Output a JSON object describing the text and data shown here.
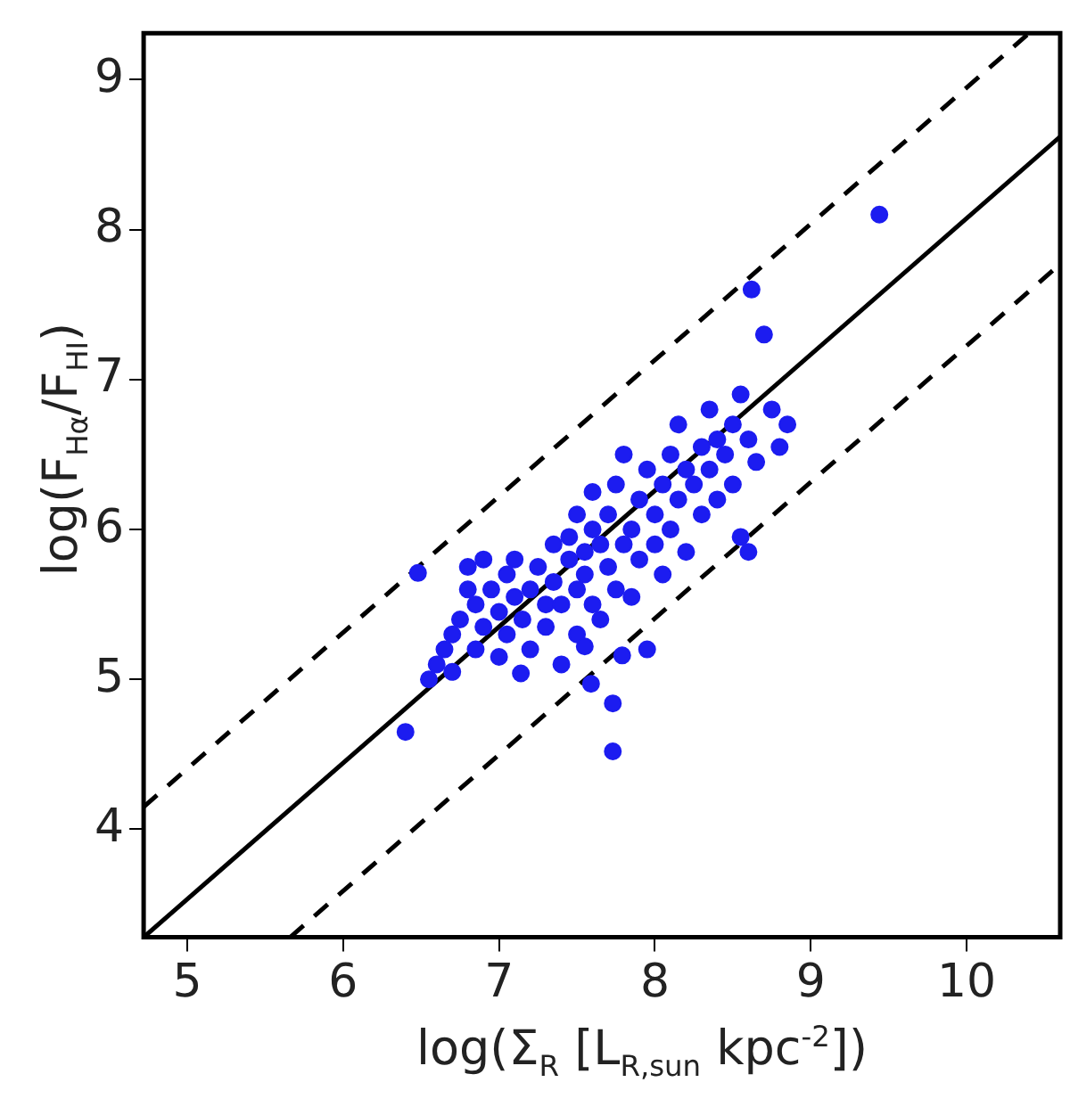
{
  "chart_data": {
    "type": "scatter",
    "xlabel": "log(Σ$_{R}$  [L$_{R,sun}$ kpc$^{-2}$])",
    "ylabel": "log(F$_{Hα}$/F$_{HI}$)",
    "xlim": [
      4.72,
      10.6
    ],
    "xticks": [
      5,
      6,
      7,
      8,
      9,
      10
    ],
    "ylim": [
      3.28,
      9.31
    ],
    "yticks": [
      4,
      5,
      6,
      7,
      8,
      9
    ],
    "grid": false,
    "legend": false,
    "series": [
      {
        "marker": "circle",
        "color": "#1c1cf0",
        "x": [
          6.4,
          6.48,
          6.55,
          6.6,
          6.65,
          6.7,
          6.7,
          6.75,
          6.8,
          6.8,
          6.85,
          6.85,
          6.9,
          6.9,
          6.95,
          7.0,
          7.0,
          7.05,
          7.05,
          7.1,
          7.1,
          7.14,
          7.15,
          7.2,
          7.2,
          7.25,
          7.3,
          7.3,
          7.35,
          7.35,
          7.4,
          7.4,
          7.45,
          7.45,
          7.5,
          7.5,
          7.5,
          7.55,
          7.55,
          7.55,
          7.59,
          7.6,
          7.6,
          7.6,
          7.65,
          7.65,
          7.7,
          7.7,
          7.73,
          7.73,
          7.75,
          7.75,
          7.79,
          7.8,
          7.8,
          7.85,
          7.85,
          7.9,
          7.9,
          7.95,
          7.95,
          8.0,
          8.0,
          8.05,
          8.05,
          8.1,
          8.1,
          8.15,
          8.15,
          8.2,
          8.2,
          8.25,
          8.3,
          8.3,
          8.35,
          8.35,
          8.4,
          8.4,
          8.45,
          8.5,
          8.5,
          8.55,
          8.55,
          8.6,
          8.6,
          8.62,
          8.65,
          8.7,
          8.75,
          8.8,
          8.85,
          9.44
        ],
        "values": [
          4.65,
          5.71,
          5.0,
          5.1,
          5.2,
          5.3,
          5.05,
          5.4,
          5.6,
          5.75,
          5.5,
          5.2,
          5.8,
          5.35,
          5.6,
          5.45,
          5.15,
          5.7,
          5.3,
          5.55,
          5.8,
          5.04,
          5.4,
          5.6,
          5.2,
          5.75,
          5.5,
          5.35,
          5.65,
          5.9,
          5.5,
          5.1,
          5.8,
          5.95,
          5.6,
          6.1,
          5.3,
          5.85,
          5.7,
          5.22,
          4.97,
          6.0,
          5.5,
          6.25,
          5.9,
          5.4,
          6.1,
          5.75,
          4.84,
          4.52,
          6.3,
          5.6,
          5.16,
          5.9,
          6.5,
          6.0,
          5.55,
          6.2,
          5.8,
          6.4,
          5.2,
          6.1,
          5.9,
          6.3,
          5.7,
          6.5,
          6.0,
          6.2,
          6.7,
          6.4,
          5.85,
          6.3,
          6.55,
          6.1,
          6.4,
          6.8,
          6.6,
          6.2,
          6.5,
          6.7,
          6.3,
          6.9,
          5.95,
          6.6,
          5.85,
          7.6,
          6.45,
          7.3,
          6.8,
          6.55,
          6.7,
          8.1
        ]
      },
      {
        "type": "line",
        "marker": "none",
        "color": "#000000",
        "line_style": "solid",
        "x": [
          4.72,
          10.6
        ],
        "values": [
          3.28,
          8.62
        ]
      },
      {
        "type": "line",
        "marker": "none",
        "color": "#000000",
        "line_style": "dashed",
        "x": [
          4.72,
          10.4
        ],
        "values": [
          4.15,
          9.31
        ]
      },
      {
        "type": "line",
        "marker": "none",
        "color": "#000000",
        "line_style": "dashed",
        "x": [
          5.66,
          10.6
        ],
        "values": [
          3.28,
          7.77
        ]
      }
    ]
  }
}
